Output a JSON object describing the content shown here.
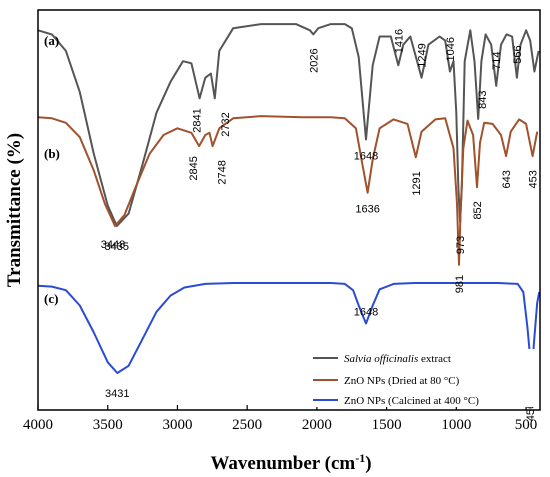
{
  "chart_data": {
    "type": "line",
    "xlabel": "Wavenumber (cm",
    "xlabel_sup": "-1",
    "xlabel_end": ")",
    "ylabel": "Transmittance (%)",
    "xlim": [
      4000,
      400
    ],
    "x_ticks": [
      4000,
      3500,
      3000,
      2500,
      2000,
      1500,
      1000,
      500
    ],
    "legend_placement": "bottom-right",
    "grid": false,
    "series": [
      {
        "panel": "(a)",
        "name_italic": "Salvia officinalis",
        "name_rest": " extract",
        "color": "#555555",
        "points": [
          [
            4000,
            0.95
          ],
          [
            3900,
            0.93
          ],
          [
            3800,
            0.85
          ],
          [
            3700,
            0.65
          ],
          [
            3600,
            0.35
          ],
          [
            3500,
            0.1
          ],
          [
            3435,
            0.0
          ],
          [
            3350,
            0.06
          ],
          [
            3250,
            0.3
          ],
          [
            3150,
            0.55
          ],
          [
            3050,
            0.7
          ],
          [
            2960,
            0.8
          ],
          [
            2900,
            0.79
          ],
          [
            2841,
            0.62
          ],
          [
            2800,
            0.72
          ],
          [
            2760,
            0.74
          ],
          [
            2732,
            0.62
          ],
          [
            2700,
            0.85
          ],
          [
            2600,
            0.96
          ],
          [
            2400,
            0.98
          ],
          [
            2150,
            0.98
          ],
          [
            2050,
            0.95
          ],
          [
            2026,
            0.93
          ],
          [
            1990,
            0.96
          ],
          [
            1900,
            0.98
          ],
          [
            1800,
            0.98
          ],
          [
            1750,
            0.96
          ],
          [
            1700,
            0.82
          ],
          [
            1648,
            0.42
          ],
          [
            1600,
            0.78
          ],
          [
            1550,
            0.92
          ],
          [
            1470,
            0.92
          ],
          [
            1416,
            0.78
          ],
          [
            1380,
            0.88
          ],
          [
            1330,
            0.92
          ],
          [
            1249,
            0.72
          ],
          [
            1200,
            0.88
          ],
          [
            1120,
            0.92
          ],
          [
            1080,
            0.9
          ],
          [
            1046,
            0.75
          ],
          [
            1020,
            0.8
          ],
          [
            1000,
            0.55
          ],
          [
            985,
            0.18
          ],
          [
            973,
            0.02
          ],
          [
            960,
            0.2
          ],
          [
            940,
            0.8
          ],
          [
            900,
            0.95
          ],
          [
            870,
            0.8
          ],
          [
            843,
            0.52
          ],
          [
            820,
            0.8
          ],
          [
            790,
            0.93
          ],
          [
            750,
            0.88
          ],
          [
            714,
            0.68
          ],
          [
            680,
            0.88
          ],
          [
            640,
            0.93
          ],
          [
            600,
            0.92
          ],
          [
            566,
            0.72
          ],
          [
            540,
            0.88
          ],
          [
            500,
            0.95
          ],
          [
            470,
            0.9
          ],
          [
            440,
            0.75
          ],
          [
            410,
            0.85
          ]
        ],
        "peak_labels": [
          {
            "wn": "3435",
            "x": 3435
          },
          {
            "wn": "2841",
            "x": 2841
          },
          {
            "wn": "2732",
            "x": 2732
          },
          {
            "wn": "2026",
            "x": 2026
          },
          {
            "wn": "1648",
            "x": 1648
          },
          {
            "wn": "1416",
            "x": 1416
          },
          {
            "wn": "1249",
            "x": 1249
          },
          {
            "wn": "1046",
            "x": 1046
          },
          {
            "wn": "973",
            "x": 973
          },
          {
            "wn": "843",
            "x": 843
          },
          {
            "wn": "714",
            "x": 714
          },
          {
            "wn": "566",
            "x": 566
          }
        ]
      },
      {
        "panel": "(b)",
        "name": "ZnO NPs (Dried at 80 °C)",
        "color": "#a0522d",
        "points": [
          [
            4000,
            0.98
          ],
          [
            3900,
            0.97
          ],
          [
            3800,
            0.93
          ],
          [
            3700,
            0.8
          ],
          [
            3600,
            0.5
          ],
          [
            3520,
            0.2
          ],
          [
            3448,
            0.0
          ],
          [
            3380,
            0.1
          ],
          [
            3300,
            0.35
          ],
          [
            3200,
            0.65
          ],
          [
            3100,
            0.82
          ],
          [
            3000,
            0.88
          ],
          [
            2900,
            0.84
          ],
          [
            2845,
            0.72
          ],
          [
            2800,
            0.82
          ],
          [
            2770,
            0.84
          ],
          [
            2748,
            0.72
          ],
          [
            2700,
            0.88
          ],
          [
            2600,
            0.97
          ],
          [
            2400,
            0.99
          ],
          [
            2100,
            0.98
          ],
          [
            1900,
            0.98
          ],
          [
            1800,
            0.97
          ],
          [
            1720,
            0.88
          ],
          [
            1680,
            0.6
          ],
          [
            1636,
            0.3
          ],
          [
            1600,
            0.6
          ],
          [
            1550,
            0.88
          ],
          [
            1450,
            0.96
          ],
          [
            1350,
            0.92
          ],
          [
            1291,
            0.62
          ],
          [
            1250,
            0.85
          ],
          [
            1150,
            0.96
          ],
          [
            1080,
            0.97
          ],
          [
            1020,
            0.7
          ],
          [
            995,
            0.2
          ],
          [
            981,
            -0.35
          ],
          [
            970,
            0.1
          ],
          [
            950,
            0.7
          ],
          [
            920,
            0.95
          ],
          [
            880,
            0.82
          ],
          [
            852,
            0.35
          ],
          [
            830,
            0.75
          ],
          [
            800,
            0.93
          ],
          [
            740,
            0.92
          ],
          [
            680,
            0.82
          ],
          [
            643,
            0.63
          ],
          [
            610,
            0.85
          ],
          [
            550,
            0.96
          ],
          [
            500,
            0.92
          ],
          [
            453,
            0.63
          ],
          [
            420,
            0.85
          ]
        ],
        "peak_labels": [
          {
            "wn": "3448",
            "x": 3448
          },
          {
            "wn": "2845",
            "x": 2845
          },
          {
            "wn": "2748",
            "x": 2748
          },
          {
            "wn": "1636",
            "x": 1636
          },
          {
            "wn": "1291",
            "x": 1291
          },
          {
            "wn": "981",
            "x": 981
          },
          {
            "wn": "852",
            "x": 852
          },
          {
            "wn": "643",
            "x": 643
          },
          {
            "wn": "453",
            "x": 453
          }
        ]
      },
      {
        "panel": "(c)",
        "name": "ZnO NPs (Calcined at 400 °C)",
        "color": "#2b4bd6",
        "points": [
          [
            4000,
            0.97
          ],
          [
            3900,
            0.96
          ],
          [
            3800,
            0.92
          ],
          [
            3700,
            0.75
          ],
          [
            3600,
            0.45
          ],
          [
            3500,
            0.12
          ],
          [
            3431,
            0.0
          ],
          [
            3350,
            0.08
          ],
          [
            3250,
            0.38
          ],
          [
            3150,
            0.68
          ],
          [
            3050,
            0.86
          ],
          [
            2950,
            0.95
          ],
          [
            2800,
            0.99
          ],
          [
            2600,
            1.0
          ],
          [
            2200,
            1.0
          ],
          [
            1900,
            1.0
          ],
          [
            1800,
            0.99
          ],
          [
            1740,
            0.92
          ],
          [
            1700,
            0.75
          ],
          [
            1648,
            0.55
          ],
          [
            1600,
            0.75
          ],
          [
            1550,
            0.93
          ],
          [
            1450,
            0.99
          ],
          [
            1300,
            1.0
          ],
          [
            1000,
            1.0
          ],
          [
            700,
            1.0
          ],
          [
            560,
            0.99
          ],
          [
            520,
            0.9
          ],
          [
            490,
            0.5
          ],
          [
            465,
            0.08
          ],
          [
            456,
            0.02
          ],
          [
            445,
            0.3
          ],
          [
            420,
            0.78
          ],
          [
            405,
            0.9
          ]
        ],
        "peak_labels": [
          {
            "wn": "3431",
            "x": 3431
          },
          {
            "wn": "1648",
            "x": 1648
          },
          {
            "wn": "456",
            "x": 456
          }
        ]
      }
    ]
  }
}
